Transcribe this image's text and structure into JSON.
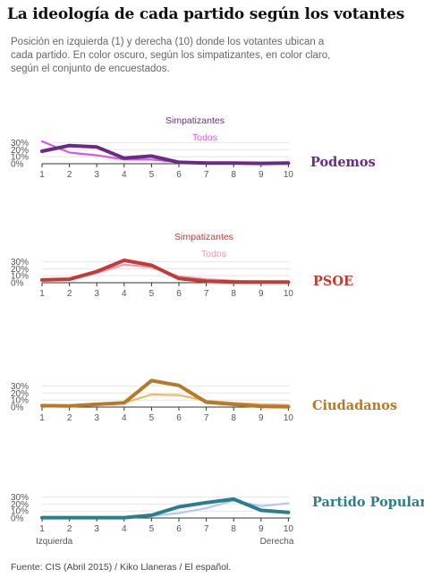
{
  "title": "La ideología de cada partido según los votantes",
  "subtitle": "Posición en izquierda (1) y derecha (10) donde los votantes ubican a cada partido. En color oscuro, según los simpatizantes, en color claro, según el conjunto de encuestados.",
  "footer": "Fuente: CIS (Abril 2015)  /  Kiko Llaneras  /  El español.",
  "colors": {
    "podemos_dark": "#6b2a86",
    "podemos_light": "#d65ae6",
    "psoe_dark": "#c23b35",
    "psoe_light": "#ee9ab4",
    "ciudadanos_dark": "#b8782a",
    "ciudadanos_light": "#ebb865",
    "pp_dark": "#2a7f8e",
    "pp_light": "#b1caed"
  },
  "chart_data": [
    {
      "type": "line",
      "party": "Podemos",
      "x": [
        1,
        2,
        3,
        4,
        5,
        6,
        7,
        8,
        9,
        10
      ],
      "yticks": [
        "0%",
        "10%",
        "20%",
        "30%"
      ],
      "xticks": [
        "1",
        "2",
        "3",
        "4",
        "5",
        "6",
        "7",
        "8",
        "9",
        "10"
      ],
      "ylim": [
        0,
        30
      ],
      "series": [
        {
          "name": "Simpatizantes",
          "values": [
            18,
            26,
            24,
            8,
            11,
            2,
            1,
            1,
            0.5,
            1
          ]
        },
        {
          "name": "Todos",
          "values": [
            32,
            16,
            12,
            6,
            6,
            2,
            1,
            1,
            1,
            1
          ]
        }
      ]
    },
    {
      "type": "line",
      "party": "PSOE",
      "x": [
        1,
        2,
        3,
        4,
        5,
        6,
        7,
        8,
        9,
        10
      ],
      "yticks": [
        "0%",
        "10%",
        "20%",
        "30%"
      ],
      "xticks": [
        "1",
        "2",
        "3",
        "4",
        "5",
        "6",
        "7",
        "8",
        "9",
        "10"
      ],
      "ylim": [
        0,
        30
      ],
      "series": [
        {
          "name": "Simpatizantes",
          "values": [
            4,
            5,
            16,
            32,
            25,
            6,
            2,
            1,
            1,
            1
          ]
        },
        {
          "name": "Todos",
          "values": [
            4,
            4,
            14,
            26,
            22,
            9,
            5,
            3,
            1,
            1
          ]
        }
      ]
    },
    {
      "type": "line",
      "party": "Ciudadanos",
      "x": [
        1,
        2,
        3,
        4,
        5,
        6,
        7,
        8,
        9,
        10
      ],
      "yticks": [
        "0%",
        "10%",
        "20%",
        "30%"
      ],
      "xticks": [
        "1",
        "2",
        "3",
        "4",
        "5",
        "6",
        "7",
        "8",
        "9",
        "10"
      ],
      "ylim": [
        0,
        30
      ],
      "series": [
        {
          "values": [
            2,
            1.5,
            4,
            6,
            38,
            31,
            7,
            4,
            1,
            0.5
          ]
        },
        {
          "values": [
            2.5,
            2,
            5,
            6,
            18,
            17,
            9,
            6,
            4,
            3
          ]
        }
      ]
    },
    {
      "type": "line",
      "party": "Partido Popular",
      "x": [
        1,
        2,
        3,
        4,
        5,
        6,
        7,
        8,
        9,
        10
      ],
      "yticks": [
        "0%",
        "10%",
        "20%",
        "30%"
      ],
      "xticks": [
        "1",
        "2",
        "3",
        "4",
        "5",
        "6",
        "7",
        "8",
        "9",
        "10"
      ],
      "x_end_labels": [
        "Izquierda",
        "Derecha"
      ],
      "ylim": [
        0,
        30
      ],
      "series": [
        {
          "values": [
            0.5,
            0.5,
            0.5,
            0.5,
            4,
            16,
            22,
            27,
            11,
            8
          ]
        },
        {
          "values": [
            1.5,
            1,
            1,
            1,
            3,
            7,
            14,
            25,
            17,
            21
          ]
        }
      ]
    }
  ]
}
